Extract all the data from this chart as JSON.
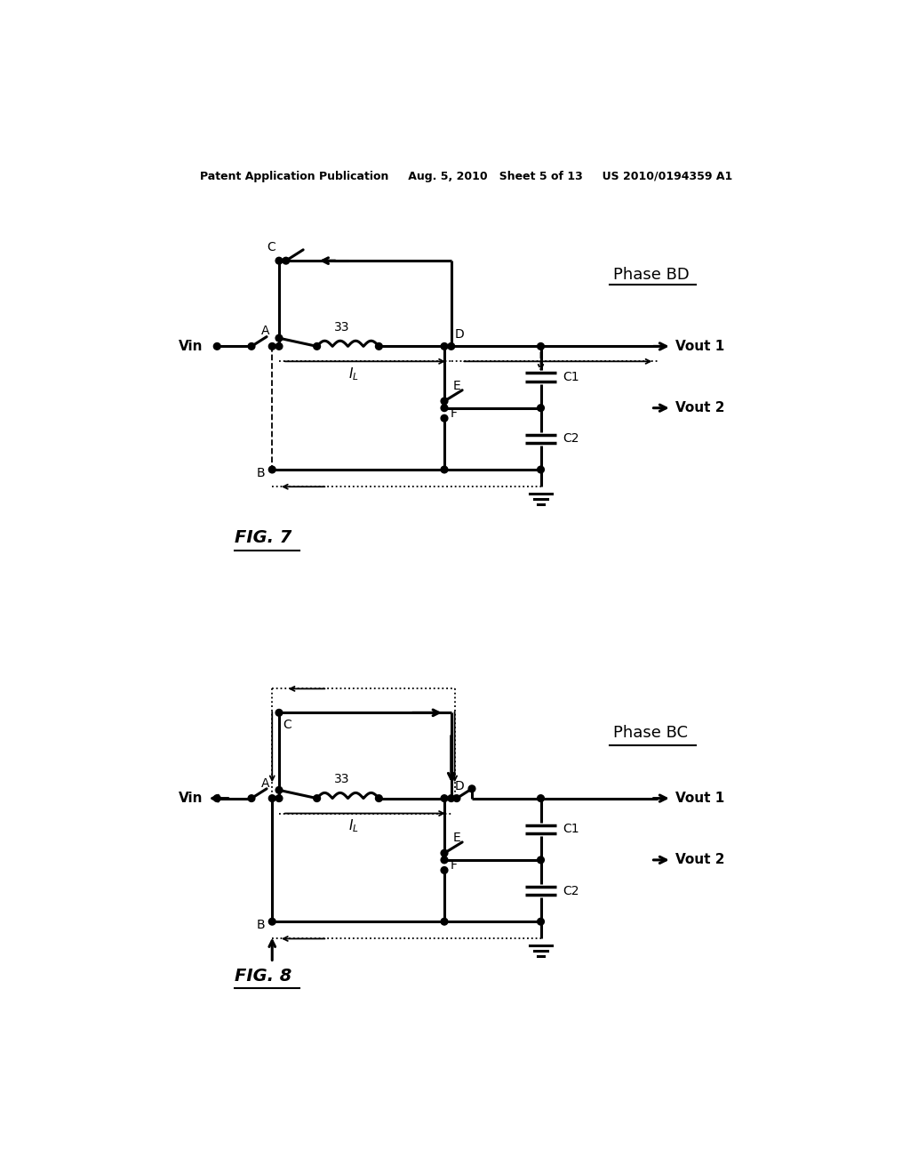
{
  "bg_color": "#ffffff",
  "header_text": "Patent Application Publication     Aug. 5, 2010   Sheet 5 of 13     US 2010/0194359 A1",
  "fig7_label": "FIG. 7",
  "fig8_label": "FIG. 8",
  "phase_bd": "Phase BD",
  "phase_bc": "Phase BC"
}
